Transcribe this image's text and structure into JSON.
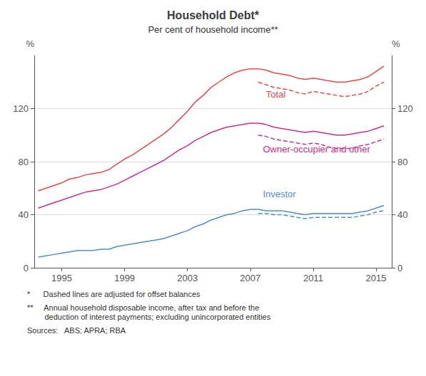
{
  "chart_data": {
    "type": "line",
    "title": "Household Debt*",
    "subtitle": "Per cent of household income**",
    "ylabel": "%",
    "y2label": "%",
    "xlim": [
      1993.25,
      2016.0
    ],
    "xticks": [
      1995,
      1999,
      2003,
      2007,
      2011,
      2015
    ],
    "ylim": [
      0,
      160
    ],
    "yticks": [
      0,
      40,
      80,
      120
    ],
    "y2lim": [
      0,
      160
    ],
    "y2ticks": [
      0,
      40,
      80,
      120
    ],
    "grid": true,
    "series": [
      {
        "color": "#E8474C",
        "line_style": "solid",
        "x": [
          1993.5,
          1994,
          1994.5,
          1995,
          1995.5,
          1996,
          1996.5,
          1997,
          1997.5,
          1998,
          1998.5,
          1999,
          1999.5,
          2000,
          2000.5,
          2001,
          2001.5,
          2002,
          2002.5,
          2003,
          2003.5,
          2004,
          2004.5,
          2005,
          2005.5,
          2006,
          2006.5,
          2007,
          2007.5
        ],
        "values": [
          58,
          60,
          62,
          64,
          67,
          68,
          70,
          71,
          72,
          74,
          78,
          82,
          85,
          89,
          93,
          97,
          101,
          106,
          112,
          118,
          125,
          130,
          136,
          140,
          144,
          147,
          149,
          150,
          150
        ]
      },
      {
        "color": "#E8474C",
        "line_style": "solid",
        "x": [
          2007.5,
          2008,
          2008.5,
          2009,
          2009.5,
          2010,
          2010.5,
          2011,
          2011.5,
          2012,
          2012.5,
          2013,
          2013.5,
          2014,
          2014.5,
          2015,
          2015.5
        ],
        "values": [
          150,
          149,
          147,
          146,
          145,
          143,
          142,
          143,
          142,
          141,
          140,
          140,
          141,
          142,
          144,
          148,
          152
        ]
      },
      {
        "color": "#E8474C",
        "line_style": "dashed",
        "x": [
          2007.5,
          2008,
          2008.5,
          2009,
          2009.5,
          2010,
          2010.5,
          2011,
          2011.5,
          2012,
          2012.5,
          2013,
          2013.5,
          2014,
          2014.5,
          2015,
          2015.5
        ],
        "values": [
          140,
          138,
          136,
          135,
          134,
          132,
          131,
          133,
          132,
          131,
          130,
          129,
          130,
          131,
          133,
          137,
          140
        ]
      },
      {
        "color": "#CC2D8F",
        "line_style": "solid",
        "x": [
          1993.5,
          1994,
          1994.5,
          1995,
          1995.5,
          1996,
          1996.5,
          1997,
          1997.5,
          1998,
          1998.5,
          1999,
          1999.5,
          2000,
          2000.5,
          2001,
          2001.5,
          2002,
          2002.5,
          2003,
          2003.5,
          2004,
          2004.5,
          2005,
          2005.5,
          2006,
          2006.5,
          2007,
          2007.5
        ],
        "values": [
          45,
          47,
          49,
          51,
          53,
          55,
          57,
          58,
          59,
          61,
          63,
          66,
          69,
          72,
          75,
          78,
          81,
          85,
          89,
          92,
          96,
          99,
          102,
          104,
          106,
          107,
          108,
          109,
          109
        ]
      },
      {
        "color": "#CC2D8F",
        "line_style": "solid",
        "x": [
          2007.5,
          2008,
          2008.5,
          2009,
          2009.5,
          2010,
          2010.5,
          2011,
          2011.5,
          2012,
          2012.5,
          2013,
          2013.5,
          2014,
          2014.5,
          2015,
          2015.5
        ],
        "values": [
          109,
          108,
          106,
          105,
          104,
          103,
          102,
          103,
          102,
          101,
          100,
          100,
          101,
          102,
          103,
          105,
          107
        ]
      },
      {
        "color": "#CC2D8F",
        "line_style": "dashed",
        "x": [
          2007.5,
          2008,
          2008.5,
          2009,
          2009.5,
          2010,
          2010.5,
          2011,
          2011.5,
          2012,
          2012.5,
          2013,
          2013.5,
          2014,
          2014.5,
          2015,
          2015.5
        ],
        "values": [
          100,
          99,
          97,
          96,
          95,
          94,
          93,
          94,
          93,
          91,
          90,
          90,
          90,
          92,
          93,
          95,
          97
        ]
      },
      {
        "color": "#4F8EC9",
        "line_style": "solid",
        "x": [
          1993.5,
          1994,
          1994.5,
          1995,
          1995.5,
          1996,
          1996.5,
          1997,
          1997.5,
          1998,
          1998.5,
          1999,
          1999.5,
          2000,
          2000.5,
          2001,
          2001.5,
          2002,
          2002.5,
          2003,
          2003.5,
          2004,
          2004.5,
          2005,
          2005.5,
          2006,
          2006.5,
          2007,
          2007.5
        ],
        "values": [
          8,
          9,
          10,
          11,
          12,
          13,
          13,
          13,
          14,
          14,
          16,
          17,
          18,
          19,
          20,
          21,
          22,
          24,
          26,
          28,
          31,
          33,
          36,
          38,
          40,
          41,
          43,
          44,
          44
        ]
      },
      {
        "color": "#4F8EC9",
        "line_style": "solid",
        "x": [
          2007.5,
          2008,
          2008.5,
          2009,
          2009.5,
          2010,
          2010.5,
          2011,
          2011.5,
          2012,
          2012.5,
          2013,
          2013.5,
          2014,
          2014.5,
          2015,
          2015.5
        ],
        "values": [
          44,
          43,
          43,
          43,
          42,
          41,
          40,
          41,
          41,
          41,
          41,
          41,
          41,
          42,
          43,
          45,
          47
        ]
      },
      {
        "color": "#4F8EC9",
        "line_style": "dashed",
        "x": [
          2007.5,
          2008,
          2008.5,
          2009,
          2009.5,
          2010,
          2010.5,
          2011,
          2011.5,
          2012,
          2012.5,
          2013,
          2013.5,
          2014,
          2014.5,
          2015,
          2015.5
        ],
        "values": [
          41,
          41,
          40,
          40,
          39,
          38,
          37,
          38,
          38,
          38,
          38,
          38,
          38,
          39,
          40,
          42,
          43
        ]
      }
    ],
    "annotations": [
      {
        "text": "Total",
        "x": 2008.0,
        "y": 127,
        "color": "#E8474C"
      },
      {
        "text": "Owner-occupier and other",
        "x": 2007.8,
        "y": 86,
        "color": "#CC2D8F"
      },
      {
        "text": "Investor",
        "x": 2007.8,
        "y": 52,
        "color": "#4F8EC9"
      }
    ],
    "footnotes": [
      "*      Dashed lines are adjusted for offset balances",
      "**     Annual household disposable income, after tax and before the\n        deduction of interest payments; excluding unincorporated entities",
      "Sources:   ABS; APRA; RBA"
    ]
  }
}
